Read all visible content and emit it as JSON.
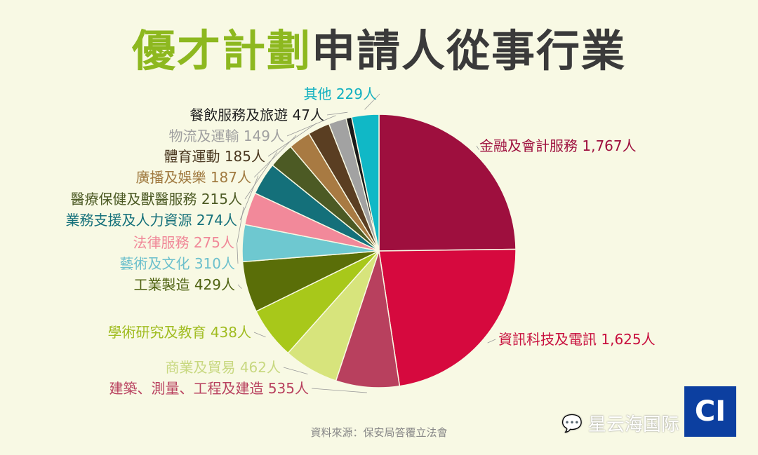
{
  "chart_data": {
    "type": "pie",
    "title_highlight": "優才計劃",
    "title_rest": "申請人從事行業",
    "unit": "人",
    "start": "12 o'clock, clockwise",
    "slices": [
      {
        "label": "金融及會計服務",
        "value": 1767,
        "display": "1,767",
        "color": "#9e0f3e"
      },
      {
        "label": "資訊科技及電訊",
        "value": 1625,
        "display": "1,625",
        "color": "#d6093e"
      },
      {
        "label": "建築、測量、工程及建造",
        "value": 535,
        "display": "535",
        "color": "#b8405e"
      },
      {
        "label": "商業及貿易",
        "value": 462,
        "display": "462",
        "color": "#d7e47c"
      },
      {
        "label": "學術研究及教育",
        "value": 438,
        "display": "438",
        "color": "#a8c81a"
      },
      {
        "label": "工業製造",
        "value": 429,
        "display": "429",
        "color": "#5a6e08"
      },
      {
        "label": "藝術及文化",
        "value": 310,
        "display": "310",
        "color": "#6ec8d0"
      },
      {
        "label": "法律服務",
        "value": 275,
        "display": "275",
        "color": "#f2899a"
      },
      {
        "label": "業務支援及人力資源",
        "value": 274,
        "display": "274",
        "color": "#14707a"
      },
      {
        "label": "醫療保健及獸醫服務",
        "value": 215,
        "display": "215",
        "color": "#4c5a24"
      },
      {
        "label": "廣播及娛樂",
        "value": 187,
        "display": "187",
        "color": "#a87a42"
      },
      {
        "label": "體育運動",
        "value": 185,
        "display": "185",
        "color": "#5a3e22"
      },
      {
        "label": "物流及運輸",
        "value": 149,
        "display": "149",
        "color": "#a2a2a2"
      },
      {
        "label": "餐飲服務及旅遊",
        "value": 47,
        "display": "47",
        "color": "#1a1a1a"
      },
      {
        "label": "其他",
        "value": 229,
        "display": "229",
        "color": "#10b8c6"
      }
    ],
    "label_colors": [
      "#9e0f3e",
      "#c8103e",
      "#b8405e",
      "#c8d880",
      "#a0bc20",
      "#4e6210",
      "#6cc0cc",
      "#f08898",
      "#14707a",
      "#4c5a24",
      "#a07a40",
      "#4a3820",
      "#a0a0a0",
      "#222222",
      "#10b0c0"
    ]
  },
  "source": "資料來源：保安局答覆立法會",
  "watermark": "星云海国际",
  "logo": "CI"
}
